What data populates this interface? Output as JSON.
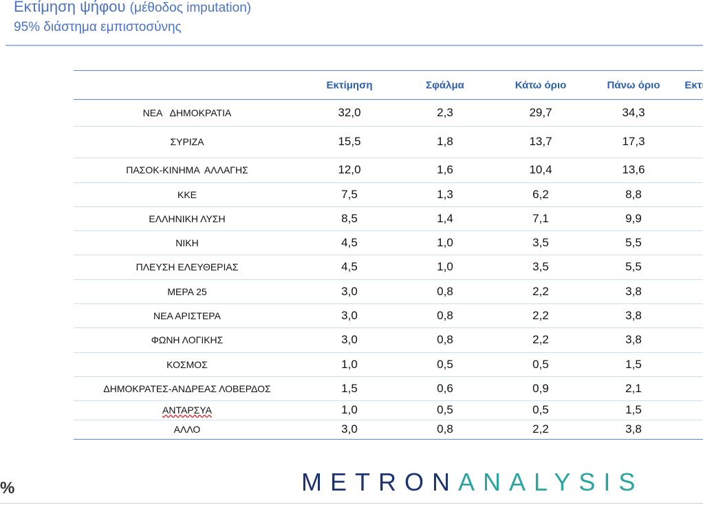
{
  "header": {
    "title": "Εκτίμηση ψήφου",
    "method": "(μέθοδος imputation)",
    "subtitle": "95% διάστημα εμπιστοσύνης"
  },
  "table": {
    "columns": [
      "Εκτίμηση",
      "Σφάλμα",
      "Κάτω όριο",
      "Πάνω όριο",
      "Εκτί"
    ],
    "rows": [
      [
        "ΝΕΑ   ΔΗΜΟΚΡΑΤΙΑ",
        "32,0",
        "2,3",
        "29,7",
        "34,3"
      ],
      [
        "ΣΥΡΙΖΑ",
        "15,5",
        "1,8",
        "13,7",
        "17,3"
      ],
      [
        "ΠΑΣΟΚ-ΚΙΝΗΜΑ  ΑΛΛΑΓΗΣ",
        "12,0",
        "1,6",
        "10,4",
        "13,6"
      ],
      [
        "ΚΚΕ",
        "7,5",
        "1,3",
        "6,2",
        "8,8"
      ],
      [
        "ΕΛΛΗΝΙΚΗ ΛΥΣΗ",
        "8,5",
        "1,4",
        "7,1",
        "9,9"
      ],
      [
        "ΝΙΚΗ",
        "4,5",
        "1,0",
        "3,5",
        "5,5"
      ],
      [
        "ΠΛΕΥΣΗ ΕΛΕΥΘΕΡΙΑΣ",
        "4,5",
        "1,0",
        "3,5",
        "5,5"
      ],
      [
        "ΜΕΡΑ 25",
        "3,0",
        "0,8",
        "2,2",
        "3,8"
      ],
      [
        "ΝΕΑ ΑΡΙΣΤΕΡΑ",
        "3,0",
        "0,8",
        "2,2",
        "3,8"
      ],
      [
        "ΦΩΝΗ ΛΟΓΙΚΗΣ",
        "3,0",
        "0,8",
        "2,2",
        "3,8"
      ],
      [
        "ΚΟΣΜΟΣ",
        "1,0",
        "0,5",
        "0,5",
        "1,5"
      ],
      [
        "ΔΗΜΟΚΡΑΤΕΣ-ΑΝΔΡΕΑΣ ΛΟΒΕΡΔΟΣ",
        "1,5",
        "0,6",
        "0,9",
        "2,1"
      ],
      [
        "ΑΝΤΑΡΣΥΑ",
        "1,0",
        "0,5",
        "0,5",
        "1,5"
      ],
      [
        "ΑΛΛΟ",
        "3,0",
        "0,8",
        "2,2",
        "3,8"
      ]
    ]
  },
  "footer": {
    "unit": "%",
    "logo_left": "METRON",
    "logo_right": "ANALYSIS"
  }
}
